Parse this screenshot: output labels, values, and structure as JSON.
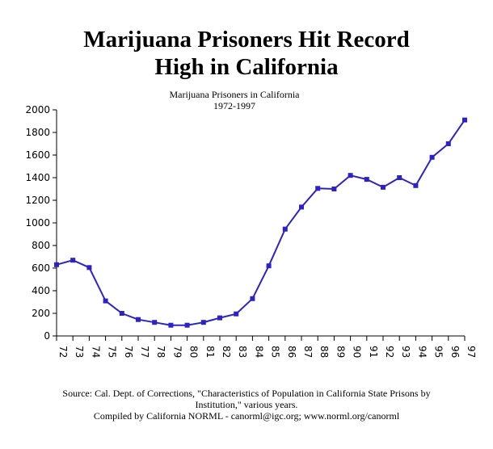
{
  "title_line1": "Marijuana Prisoners Hit Record",
  "title_line2": "High in California",
  "subtitle_line1": "Marijuana Prisoners in California",
  "subtitle_line2": "1972-1997",
  "source_line1": "Source: Cal. Dept. of Corrections, \"Characteristics of Population in California State Prisons by",
  "source_line2": "Institution,\" various years.",
  "compiled_line": "Compiled by California NORML - canorml@igc.org;  www.norml.org/canorml",
  "chart_data": {
    "type": "line",
    "title": "Marijuana Prisoners in California",
    "subtitle": "1972-1997",
    "xlabel": "",
    "ylabel": "",
    "categories": [
      "72",
      "73",
      "74",
      "75",
      "76",
      "77",
      "78",
      "79",
      "80",
      "81",
      "82",
      "83",
      "84",
      "85",
      "86",
      "87",
      "88",
      "89",
      "90",
      "91",
      "92",
      "93",
      "94",
      "95",
      "96",
      "97"
    ],
    "series": [
      {
        "values": [
          630,
          670,
          605,
          310,
          200,
          145,
          120,
          95,
          95,
          120,
          160,
          195,
          330,
          620,
          945,
          1140,
          1305,
          1300,
          1420,
          1385,
          1315,
          1400,
          1330,
          1580,
          1700,
          1910
        ]
      }
    ],
    "yticks": [
      0,
      200,
      400,
      600,
      800,
      1000,
      1200,
      1400,
      1600,
      1800,
      2000
    ],
    "ylim": [
      0,
      2000
    ],
    "grid": false,
    "legend": "none",
    "line_color": "#2d22c8",
    "marker_color": "#2d22c8"
  }
}
